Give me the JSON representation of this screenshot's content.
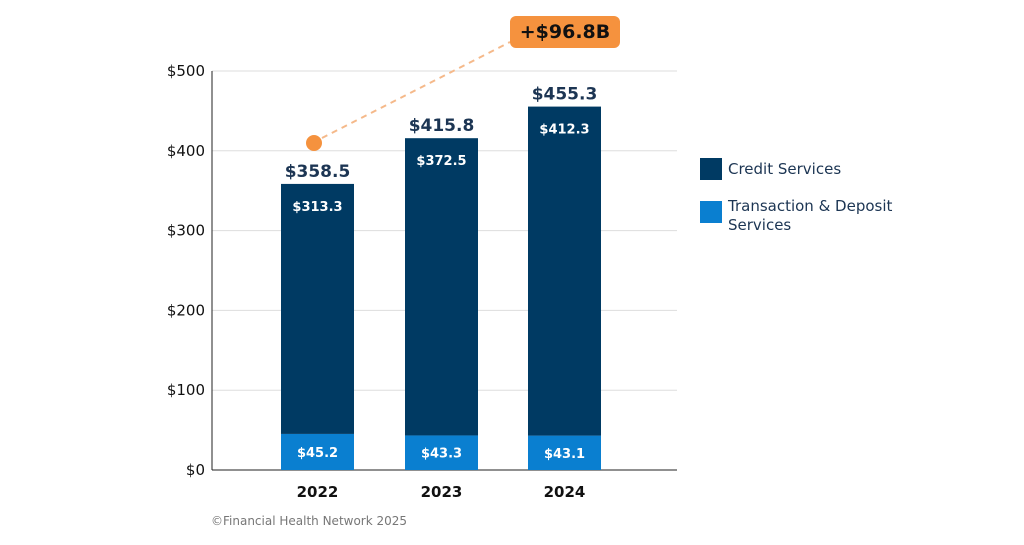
{
  "colors": {
    "credit": "#003a63",
    "transaction": "#0a7fd0",
    "annotation": "#f5923e",
    "grid": "#dddddd"
  },
  "chart_data": {
    "type": "bar",
    "stacked": true,
    "categories": [
      "2022",
      "2023",
      "2024"
    ],
    "series": [
      {
        "name": "Transaction & Deposit Services",
        "values": [
          45.2,
          43.3,
          43.1
        ],
        "labels": [
          "$45.2",
          "$43.3",
          "$43.1"
        ]
      },
      {
        "name": "Credit Services",
        "values": [
          313.3,
          372.5,
          412.3
        ],
        "labels": [
          "$313.3",
          "$372.5",
          "$412.3"
        ]
      }
    ],
    "totals": [
      358.5,
      415.8,
      455.3
    ],
    "total_labels": [
      "$358.5",
      "$415.8",
      "$455.3"
    ],
    "ylim": [
      0,
      500
    ],
    "yticks": [
      0,
      100,
      200,
      300,
      400,
      500
    ],
    "ytick_labels": [
      "$0",
      "$100",
      "$200",
      "$300",
      "$400",
      "$500"
    ],
    "grid": true,
    "legend_position": "right",
    "annotation": {
      "text": "+$96.8B"
    }
  },
  "legend": {
    "credit": "Credit Services",
    "transaction": "Transaction & Deposit Services"
  },
  "footer": "©Financial Health Network 2025"
}
